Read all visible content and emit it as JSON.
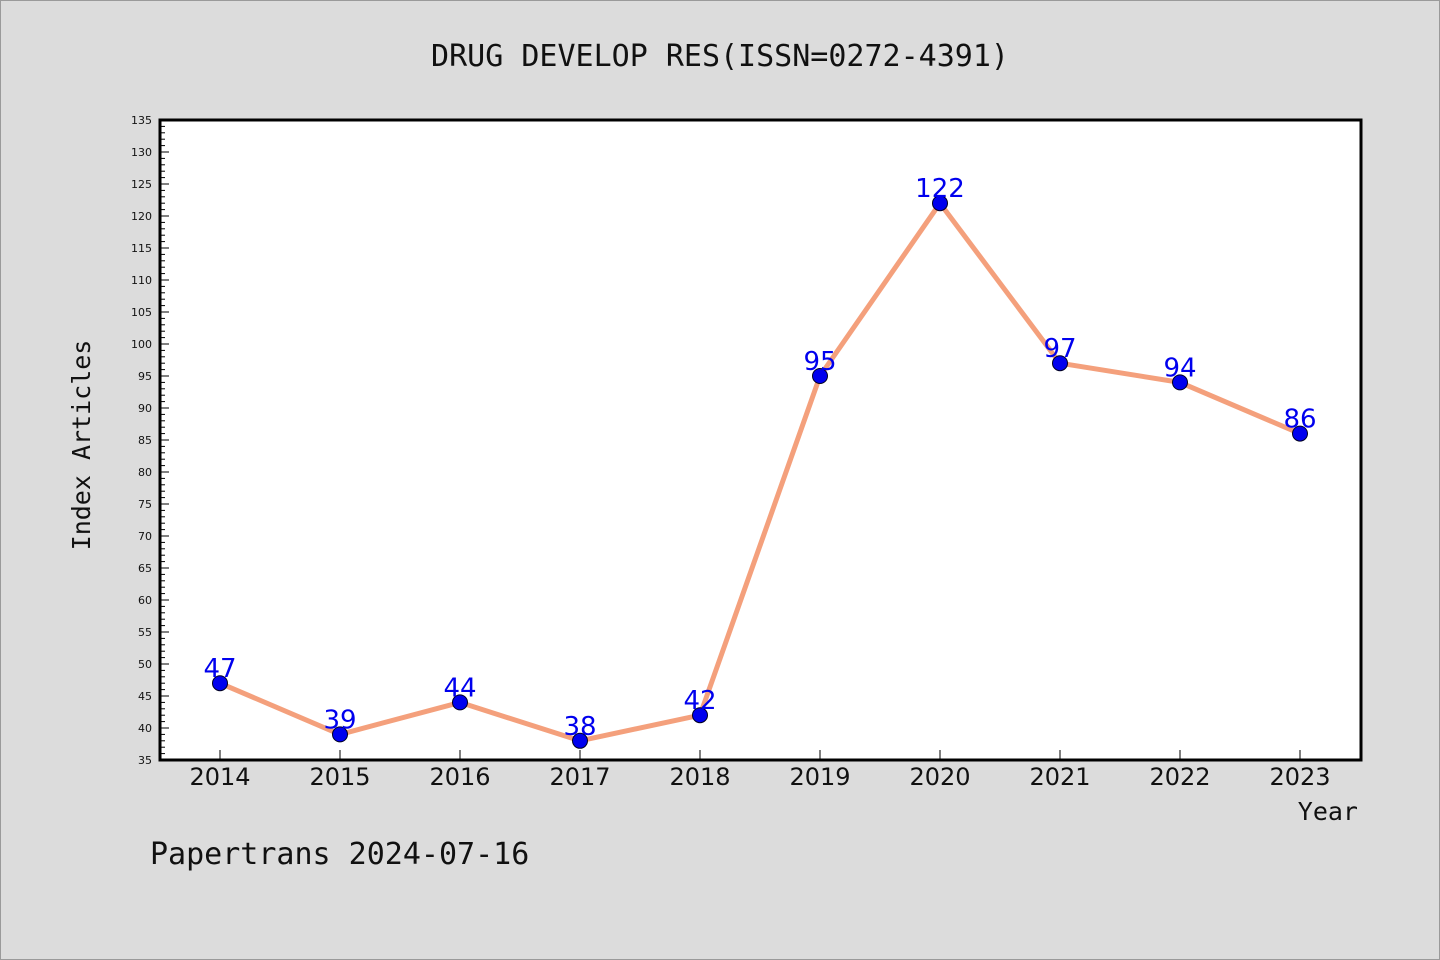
{
  "chart_data": {
    "type": "line",
    "title": "DRUG DEVELOP RES(ISSN=0272-4391)",
    "xlabel": "Year",
    "ylabel": "Index Articles",
    "categories": [
      "2014",
      "2015",
      "2016",
      "2017",
      "2018",
      "2019",
      "2020",
      "2021",
      "2022",
      "2023"
    ],
    "values": [
      47,
      39,
      44,
      38,
      42,
      95,
      122,
      97,
      94,
      86
    ],
    "ylim": [
      35,
      135
    ],
    "ytick_step": 5,
    "grid": false,
    "line_color": "#f4a07c",
    "marker_color": "#0000ee",
    "label_color": "#0000ee",
    "plot_background": "#ffffff",
    "page_background": "#dcdcdc"
  },
  "footer": {
    "text": "Papertrans 2024-07-16"
  }
}
